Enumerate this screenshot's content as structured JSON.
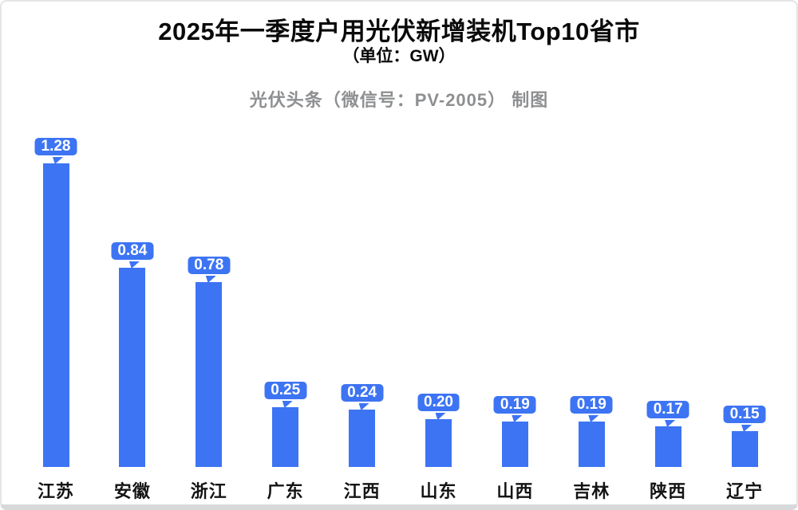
{
  "header": {
    "title": "2025年一季度户用光伏新增装机Top10省市",
    "subtitle": "（单位：GW）",
    "attribution": "光伏头条（微信号：PV-2005） 制图"
  },
  "colors": {
    "bar_blue": "#3d74f3",
    "badge_text": "#ffffff",
    "badge_border": "#ffffff",
    "title_text": "#0a0a0a",
    "attribution_gray": "#8e8f91",
    "category_text": "#141414",
    "card_border": "#d7d9db",
    "background": "#ffffff"
  },
  "chart_data": {
    "type": "bar",
    "title": "2025年一季度户用光伏新增装机Top10省市",
    "subtitle": "（单位：GW）",
    "unit": "GW",
    "categories": [
      "江苏",
      "安徽",
      "浙江",
      "广东",
      "江西",
      "山东",
      "山西",
      "吉林",
      "陕西",
      "辽宁"
    ],
    "values": [
      1.28,
      0.84,
      0.78,
      0.25,
      0.24,
      0.2,
      0.19,
      0.19,
      0.17,
      0.15
    ],
    "value_labels": [
      "1.28",
      "0.84",
      "0.78",
      "0.25",
      "0.24",
      "0.20",
      "0.19",
      "0.19",
      "0.17",
      "0.15"
    ],
    "xlabel": "",
    "ylabel": "",
    "ylim": [
      0,
      1.4
    ],
    "grid": false,
    "legend": "none",
    "y_axis_visible": false,
    "bar_color": "#3d74f3",
    "value_label_style": "speech-bubble-badge-above-bar"
  }
}
